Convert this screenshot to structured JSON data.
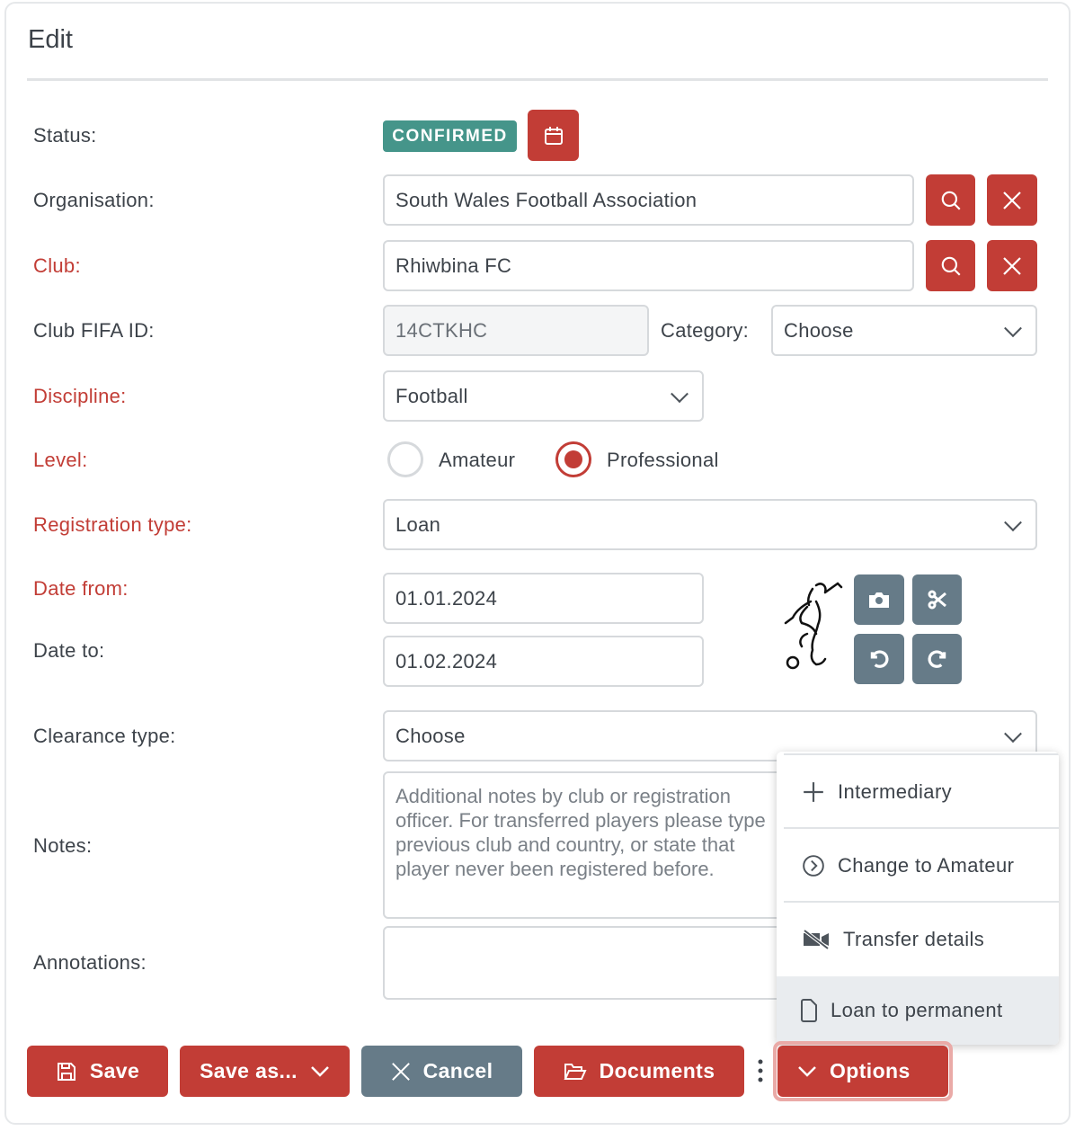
{
  "title": "Edit",
  "colors": {
    "accent": "#c23d36",
    "status": "#45958a",
    "secondary": "#667b88"
  },
  "form": {
    "status": {
      "label": "Status:",
      "badge": "CONFIRMED",
      "icon": "calendar-icon"
    },
    "organisation": {
      "label": "Organisation:",
      "value": "South Wales Football Association"
    },
    "club": {
      "label": "Club:",
      "value": "Rhiwbina FC"
    },
    "club_fifa_id": {
      "label": "Club FIFA ID:",
      "value": "14CTKHC"
    },
    "category": {
      "label": "Category:",
      "value": "Choose"
    },
    "discipline": {
      "label": "Discipline:",
      "value": "Football"
    },
    "level": {
      "label": "Level:",
      "options": [
        "Amateur",
        "Professional"
      ],
      "selected": "Professional"
    },
    "registration_type": {
      "label": "Registration type:",
      "value": "Loan"
    },
    "date_from": {
      "label": "Date from:",
      "value": "01.01.2024"
    },
    "date_to": {
      "label": "Date to:",
      "value": "01.02.2024"
    },
    "clearance_type": {
      "label": "Clearance type:",
      "value": "Choose"
    },
    "notes": {
      "label": "Notes:",
      "placeholder": "Additional notes by club or registration officer. For transferred players please type previous club and country, or state that player never been registered before."
    },
    "annotations": {
      "label": "Annotations:",
      "value": ""
    }
  },
  "menu": {
    "items": [
      {
        "label": "Intermediary",
        "icon": "plus-icon"
      },
      {
        "label": "Change to Amateur",
        "icon": "chevron-circle-right-icon"
      },
      {
        "label": "Transfer details",
        "icon": "video-slash-icon"
      },
      {
        "label": "Loan to permanent",
        "icon": "file-icon",
        "highlighted": true
      }
    ]
  },
  "footer": {
    "save": "Save",
    "save_as": "Save as...",
    "cancel": "Cancel",
    "documents": "Documents",
    "options": "Options"
  }
}
